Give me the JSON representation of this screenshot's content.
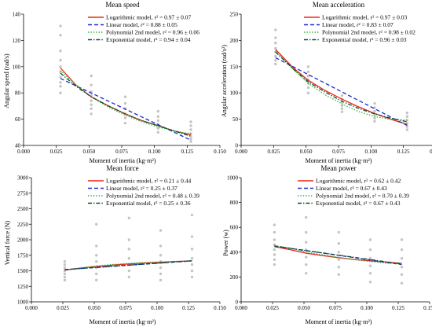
{
  "chart_data": [
    {
      "type": "scatter",
      "title": "Mean speed",
      "xlabel": "Moment of inertia (kg·m²)",
      "ylabel": "Angular speed (rad/s)",
      "xlim": [
        0.0,
        0.15
      ],
      "ylim": [
        40,
        140
      ],
      "xticks": [
        "0.000",
        "0.025",
        "0.050",
        "0.075",
        "0.100",
        "0.125",
        "0.150"
      ],
      "yticks": [
        "40",
        "60",
        "80",
        "100",
        "120",
        "140"
      ],
      "x": [
        0.0282,
        0.0517,
        0.0777,
        0.1028,
        0.1278
      ],
      "scatter_points": [
        [
          0.0282,
          131
        ],
        [
          0.0282,
          124
        ],
        [
          0.0282,
          112
        ],
        [
          0.0282,
          105
        ],
        [
          0.0282,
          100
        ],
        [
          0.0282,
          96
        ],
        [
          0.0282,
          92
        ],
        [
          0.0282,
          88
        ],
        [
          0.0282,
          85
        ],
        [
          0.0282,
          80
        ],
        [
          0.0517,
          93
        ],
        [
          0.0517,
          86
        ],
        [
          0.0517,
          81
        ],
        [
          0.0517,
          78
        ],
        [
          0.0517,
          74
        ],
        [
          0.0517,
          71
        ],
        [
          0.0517,
          68
        ],
        [
          0.0517,
          64
        ],
        [
          0.0777,
          77
        ],
        [
          0.0777,
          72
        ],
        [
          0.0777,
          68
        ],
        [
          0.0777,
          64
        ],
        [
          0.0777,
          61
        ],
        [
          0.0777,
          57
        ],
        [
          0.1028,
          66
        ],
        [
          0.1028,
          62
        ],
        [
          0.1028,
          59
        ],
        [
          0.1028,
          56
        ],
        [
          0.1028,
          53
        ],
        [
          0.1028,
          50
        ],
        [
          0.1278,
          58
        ],
        [
          0.1278,
          55
        ],
        [
          0.1278,
          52
        ],
        [
          0.1278,
          49
        ],
        [
          0.1278,
          47
        ],
        [
          0.1278,
          45
        ],
        [
          0.1278,
          43
        ]
      ],
      "series": [
        {
          "name": "Logarithmic model, r² = 0.97 ± 0.07",
          "style": "solid",
          "color": "#e8261c",
          "x": [
            0.0282,
            0.04,
            0.0517,
            0.065,
            0.0777,
            0.09,
            0.1028,
            0.115,
            0.1278
          ],
          "y": [
            99,
            86,
            77,
            70,
            64,
            59,
            55,
            51,
            48
          ]
        },
        {
          "name": "Linear model, r² = 0.88 ± 0.05",
          "style": "dashed",
          "color": "#1a2ad0",
          "x": [
            0.0282,
            0.1278
          ],
          "y": [
            91,
            44
          ]
        },
        {
          "name": "Polynomial 2nd model, r² = 0.96 ± 0.06",
          "style": "dotted",
          "color": "#2fb52f",
          "x": [
            0.0282,
            0.04,
            0.0517,
            0.065,
            0.0777,
            0.09,
            0.1028,
            0.115,
            0.1278
          ],
          "y": [
            97,
            86,
            77,
            69,
            63,
            58,
            54,
            51,
            49
          ]
        },
        {
          "name": "Exponential model, r² = 0.94 ± 0.04",
          "style": "dashdot",
          "color": "#0e4a33",
          "x": [
            0.0282,
            0.04,
            0.0517,
            0.065,
            0.0777,
            0.09,
            0.1028,
            0.115,
            0.1278
          ],
          "y": [
            95,
            85,
            77,
            70,
            64,
            59,
            55,
            51,
            47
          ]
        }
      ],
      "legend_position": "top-right"
    },
    {
      "type": "scatter",
      "title": "Mean acceleration",
      "xlabel": "Moment of inertia (kg·m²)",
      "ylabel": "Angular acceleration (rad/s²)",
      "xlim": [
        0.0,
        0.15
      ],
      "ylim": [
        0,
        250
      ],
      "xticks": [
        "0.000",
        "0.025",
        "0.050",
        "0.075",
        "0.100",
        "0.125",
        "0.150"
      ],
      "yticks": [
        "0",
        "50",
        "100",
        "150",
        "200",
        "250"
      ],
      "x": [
        0.0265,
        0.0517,
        0.0777,
        0.1028,
        0.1278
      ],
      "scatter_points": [
        [
          0.0265,
          220
        ],
        [
          0.0265,
          205
        ],
        [
          0.0265,
          195
        ],
        [
          0.0265,
          185
        ],
        [
          0.0265,
          178
        ],
        [
          0.0265,
          170
        ],
        [
          0.0265,
          162
        ],
        [
          0.0265,
          155
        ],
        [
          0.0517,
          150
        ],
        [
          0.0517,
          140
        ],
        [
          0.0517,
          132
        ],
        [
          0.0517,
          125
        ],
        [
          0.0517,
          118
        ],
        [
          0.0517,
          110
        ],
        [
          0.0517,
          100
        ],
        [
          0.0777,
          95
        ],
        [
          0.0777,
          88
        ],
        [
          0.0777,
          82
        ],
        [
          0.0777,
          76
        ],
        [
          0.0777,
          70
        ],
        [
          0.0777,
          64
        ],
        [
          0.1028,
          80
        ],
        [
          0.1028,
          72
        ],
        [
          0.1028,
          65
        ],
        [
          0.1028,
          58
        ],
        [
          0.1028,
          52
        ],
        [
          0.1028,
          46
        ],
        [
          0.1278,
          62
        ],
        [
          0.1278,
          55
        ],
        [
          0.1278,
          48
        ],
        [
          0.1278,
          42
        ],
        [
          0.1278,
          36
        ],
        [
          0.1278,
          30
        ]
      ],
      "series": [
        {
          "name": "Logarithmic model, r² = 0.97 ± 0.03",
          "style": "solid",
          "color": "#e8261c",
          "x": [
            0.0265,
            0.04,
            0.0517,
            0.065,
            0.0777,
            0.09,
            0.1028,
            0.115,
            0.1278
          ],
          "y": [
            183,
            148,
            124,
            104,
            88,
            74,
            61,
            50,
            40
          ]
        },
        {
          "name": "Linear model, r² = 0.83 ± 0.07",
          "style": "dashed",
          "color": "#1a2ad0",
          "x": [
            0.0265,
            0.1278
          ],
          "y": [
            167,
            38
          ]
        },
        {
          "name": "Polynomial 2nd model, r² = 0.98 ± 0.02",
          "style": "dotted",
          "color": "#2fb52f",
          "x": [
            0.0265,
            0.04,
            0.0517,
            0.065,
            0.0777,
            0.09,
            0.1028,
            0.115,
            0.1278
          ],
          "y": [
            180,
            145,
            118,
            96,
            79,
            65,
            55,
            50,
            48
          ]
        },
        {
          "name": "Exponential model, r² = 0.96 ± 0.03",
          "style": "dashdot",
          "color": "#0e4a33",
          "x": [
            0.0265,
            0.04,
            0.0517,
            0.065,
            0.0777,
            0.09,
            0.1028,
            0.115,
            0.1278
          ],
          "y": [
            178,
            146,
            121,
            101,
            84,
            71,
            60,
            52,
            45
          ]
        }
      ],
      "legend_position": "top-right"
    },
    {
      "type": "scatter",
      "title": "Mean force",
      "xlabel": "Moment of inertia (kg·m²)",
      "ylabel": "Vertical force (N)",
      "xlim": [
        0.0,
        0.15
      ],
      "ylim": [
        1000,
        3000
      ],
      "xticks": [
        "0.000",
        "0.025",
        "0.050",
        "0.075",
        "0.100",
        "0.125",
        "0.150"
      ],
      "yticks": [
        "1000",
        "1250",
        "1500",
        "1750",
        "2000",
        "2250",
        "2500",
        "2750",
        "3000"
      ],
      "x": [
        0.0265,
        0.0517,
        0.0777,
        0.1028,
        0.1278
      ],
      "scatter_points": [
        [
          0.0265,
          1650
        ],
        [
          0.0265,
          1600
        ],
        [
          0.0265,
          1550
        ],
        [
          0.0265,
          1500
        ],
        [
          0.0265,
          1450
        ],
        [
          0.0265,
          1400
        ],
        [
          0.0265,
          1350
        ],
        [
          0.0517,
          2250
        ],
        [
          0.0517,
          1900
        ],
        [
          0.0517,
          1750
        ],
        [
          0.0517,
          1650
        ],
        [
          0.0517,
          1550
        ],
        [
          0.0517,
          1450
        ],
        [
          0.0517,
          1350
        ],
        [
          0.0777,
          2350
        ],
        [
          0.0777,
          2000
        ],
        [
          0.0777,
          1850
        ],
        [
          0.0777,
          1700
        ],
        [
          0.0777,
          1600
        ],
        [
          0.0777,
          1500
        ],
        [
          0.0777,
          1400
        ],
        [
          0.1028,
          2150
        ],
        [
          0.1028,
          1900
        ],
        [
          0.1028,
          1750
        ],
        [
          0.1028,
          1650
        ],
        [
          0.1028,
          1550
        ],
        [
          0.1028,
          1450
        ],
        [
          0.1028,
          1350
        ],
        [
          0.1278,
          2400
        ],
        [
          0.1278,
          2050
        ],
        [
          0.1278,
          1850
        ],
        [
          0.1278,
          1700
        ],
        [
          0.1278,
          1600
        ],
        [
          0.1278,
          1500
        ],
        [
          0.1278,
          1400
        ]
      ],
      "series": [
        {
          "name": "Logarithmic model, r² = 0.21 ± 0.44",
          "style": "solid",
          "color": "#e8261c",
          "x": [
            0.0265,
            0.04,
            0.0517,
            0.065,
            0.0777,
            0.09,
            0.1028,
            0.115,
            0.1278
          ],
          "y": [
            1510,
            1545,
            1570,
            1592,
            1610,
            1625,
            1638,
            1649,
            1660
          ]
        },
        {
          "name": "Linear model, r² = 0.25 ± 0.37",
          "style": "dashed",
          "color": "#1a2ad0",
          "x": [
            0.0265,
            0.1278
          ],
          "y": [
            1520,
            1660
          ]
        },
        {
          "name": "Polynomial 2nd model, r² = 0.48 ± 0.39",
          "style": "dotted",
          "color": "#2fb52f",
          "x": [
            0.0265,
            0.04,
            0.0517,
            0.065,
            0.0777,
            0.09,
            0.1028,
            0.115,
            0.1278
          ],
          "y": [
            1515,
            1550,
            1578,
            1602,
            1620,
            1634,
            1643,
            1650,
            1655
          ]
        },
        {
          "name": "Exponential model, r² = 0.25 ± 0.36",
          "style": "dashdot",
          "color": "#0e4a33",
          "x": [
            0.0265,
            0.1278
          ],
          "y": [
            1518,
            1662
          ]
        }
      ],
      "legend_position": "top-right"
    },
    {
      "type": "scatter",
      "title": "Mean power",
      "xlabel": "Moment of inertia (kg·m²)",
      "ylabel": "Power (w)",
      "xlim": [
        0.0,
        0.15
      ],
      "ylim": [
        0,
        1000
      ],
      "xticks": [
        "0.000",
        "0.025",
        "0.050",
        "0.075",
        "0.100",
        "0.125",
        "0.150"
      ],
      "yticks": [
        "0",
        "200",
        "400",
        "600",
        "800",
        "1000"
      ],
      "x": [
        0.0265,
        0.0517,
        0.0777,
        0.1028,
        0.1278
      ],
      "scatter_points": [
        [
          0.0265,
          620
        ],
        [
          0.0265,
          560
        ],
        [
          0.0265,
          500
        ],
        [
          0.0265,
          460
        ],
        [
          0.0265,
          420
        ],
        [
          0.0265,
          380
        ],
        [
          0.0265,
          340
        ],
        [
          0.0265,
          300
        ],
        [
          0.0517,
          680
        ],
        [
          0.0517,
          560
        ],
        [
          0.0517,
          480
        ],
        [
          0.0517,
          420
        ],
        [
          0.0517,
          360
        ],
        [
          0.0517,
          300
        ],
        [
          0.0517,
          230
        ],
        [
          0.0777,
          560
        ],
        [
          0.0777,
          470
        ],
        [
          0.0777,
          400
        ],
        [
          0.0777,
          340
        ],
        [
          0.0777,
          280
        ],
        [
          0.0777,
          220
        ],
        [
          0.1028,
          500
        ],
        [
          0.1028,
          420
        ],
        [
          0.1028,
          350
        ],
        [
          0.1028,
          290
        ],
        [
          0.1028,
          230
        ],
        [
          0.1028,
          160
        ],
        [
          0.1278,
          500
        ],
        [
          0.1278,
          420
        ],
        [
          0.1278,
          350
        ],
        [
          0.1278,
          280
        ],
        [
          0.1278,
          220
        ],
        [
          0.1278,
          150
        ]
      ],
      "series": [
        {
          "name": "Logarithmic model, r² = 0.62 ± 0.42",
          "style": "solid",
          "color": "#e8261c",
          "x": [
            0.0265,
            0.04,
            0.0517,
            0.065,
            0.0777,
            0.09,
            0.1028,
            0.115,
            0.1278
          ],
          "y": [
            445,
            418,
            392,
            372,
            355,
            341,
            330,
            320,
            311
          ]
        },
        {
          "name": "Linear model, r² = 0.67 ± 0.43",
          "style": "dashed",
          "color": "#1a2ad0",
          "x": [
            0.0265,
            0.1278
          ],
          "y": [
            450,
            300
          ]
        },
        {
          "name": "Polynomial 2nd model, r² = 0.70 ± 0.39",
          "style": "dotted",
          "color": "#2fb52f",
          "x": [
            0.0265,
            0.04,
            0.0517,
            0.065,
            0.0777,
            0.09,
            0.1028,
            0.115,
            0.1278
          ],
          "y": [
            455,
            430,
            402,
            378,
            358,
            340,
            324,
            312,
            303
          ]
        },
        {
          "name": "Exponential model, r² = 0.67 ± 0.43",
          "style": "dashdot",
          "color": "#0e4a33",
          "x": [
            0.0265,
            0.1278
          ],
          "y": [
            448,
            305
          ]
        }
      ],
      "legend_position": "top-right"
    }
  ]
}
